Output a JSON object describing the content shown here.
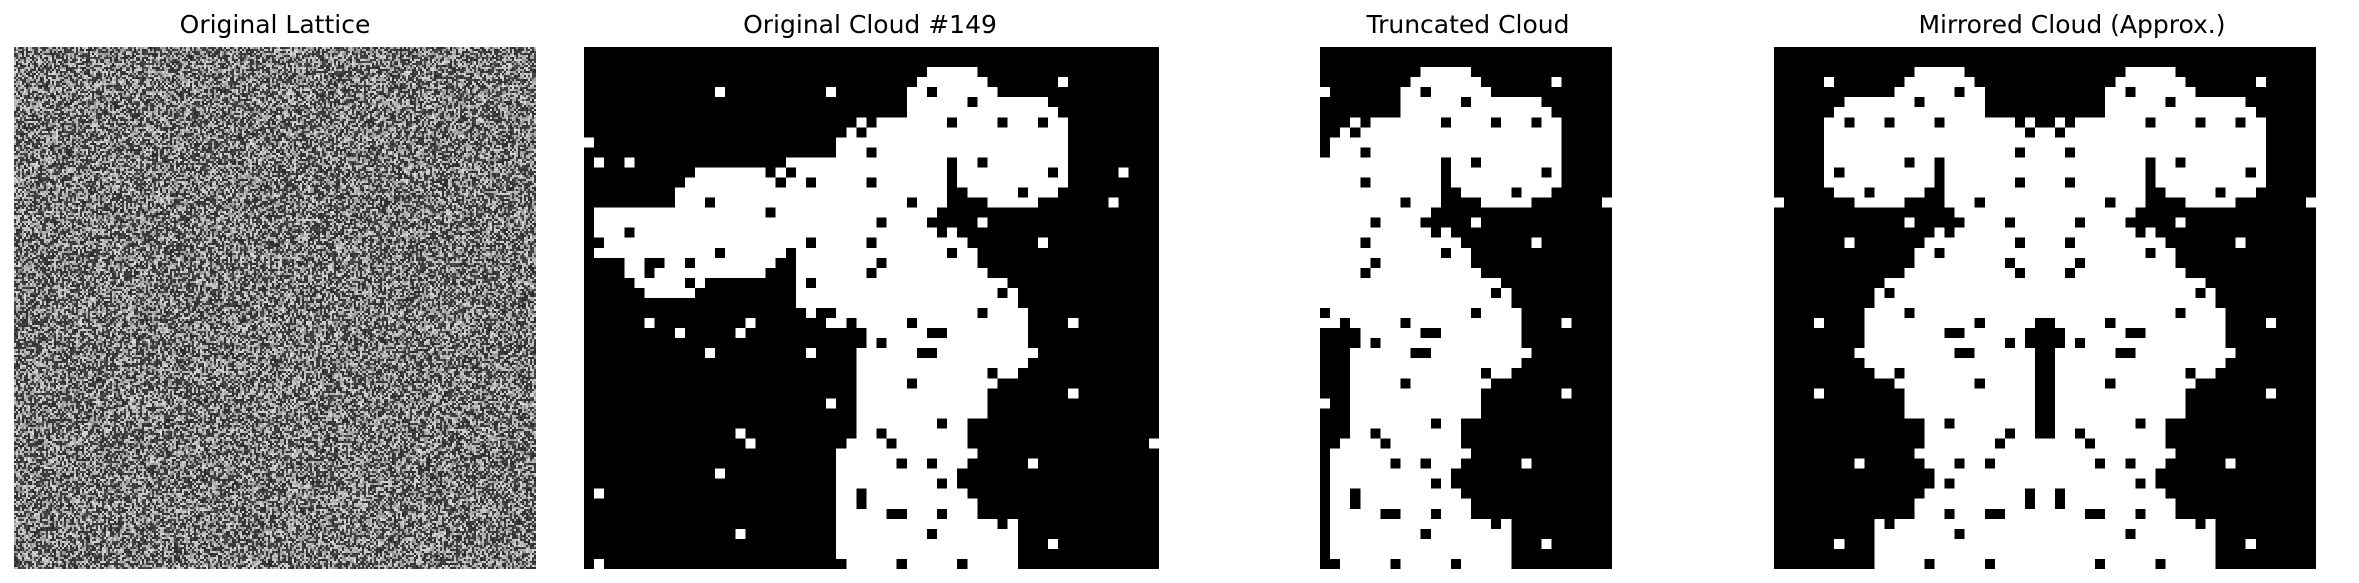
{
  "panels": [
    {
      "title": "Original Lattice"
    },
    {
      "title": "Original Cloud #149"
    },
    {
      "title": "Truncated Cloud"
    },
    {
      "title": "Mirrored Cloud (Approx.)"
    }
  ],
  "colors": {
    "background": "#ffffff",
    "cloud": "#ffffff",
    "empty": "#000000"
  }
}
